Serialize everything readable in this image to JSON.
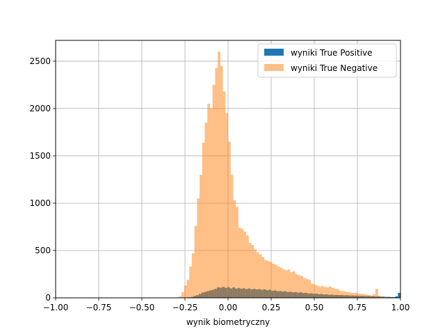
{
  "chart_data": {
    "type": "bar",
    "xlabel": "wynik biometryczny",
    "ylabel": "",
    "xlim": [
      -1.0,
      1.0
    ],
    "ylim": [
      0,
      2720
    ],
    "grid": true,
    "legend_position": "top-right",
    "x_ticks": [
      {
        "value": -1.0,
        "label": "−1.00"
      },
      {
        "value": -0.75,
        "label": "−0.75"
      },
      {
        "value": -0.5,
        "label": "−0.50"
      },
      {
        "value": -0.25,
        "label": "−0.25"
      },
      {
        "value": 0.0,
        "label": "0.00"
      },
      {
        "value": 0.25,
        "label": "0.25"
      },
      {
        "value": 0.5,
        "label": "0.50"
      },
      {
        "value": 0.75,
        "label": "0.75"
      },
      {
        "value": 1.0,
        "label": "1.00"
      }
    ],
    "y_ticks": [
      {
        "value": 0,
        "label": "0"
      },
      {
        "value": 500,
        "label": "500"
      },
      {
        "value": 1000,
        "label": "1000"
      },
      {
        "value": 1500,
        "label": "1500"
      },
      {
        "value": 2000,
        "label": "2000"
      },
      {
        "value": 2500,
        "label": "2500"
      }
    ],
    "series": [
      {
        "name": "wyniki True Positive",
        "color": "#1f77b4",
        "opacity": 1.0,
        "bins": [
          [
            -0.26,
            -0.245,
            2
          ],
          [
            -0.245,
            -0.23,
            4
          ],
          [
            -0.23,
            -0.215,
            6
          ],
          [
            -0.215,
            -0.2,
            10
          ],
          [
            -0.2,
            -0.185,
            20
          ],
          [
            -0.185,
            -0.17,
            28
          ],
          [
            -0.17,
            -0.155,
            40
          ],
          [
            -0.155,
            -0.14,
            55
          ],
          [
            -0.14,
            -0.125,
            62
          ],
          [
            -0.125,
            -0.11,
            70
          ],
          [
            -0.11,
            -0.095,
            78
          ],
          [
            -0.095,
            -0.08,
            85
          ],
          [
            -0.08,
            -0.065,
            95
          ],
          [
            -0.065,
            -0.05,
            110
          ],
          [
            -0.05,
            -0.035,
            108
          ],
          [
            -0.035,
            -0.02,
            115
          ],
          [
            -0.02,
            -0.005,
            105
          ],
          [
            -0.005,
            0.01,
            112
          ],
          [
            0.01,
            0.025,
            100
          ],
          [
            0.025,
            0.04,
            110
          ],
          [
            0.04,
            0.055,
            98
          ],
          [
            0.055,
            0.07,
            104
          ],
          [
            0.07,
            0.085,
            96
          ],
          [
            0.085,
            0.1,
            100
          ],
          [
            0.1,
            0.115,
            92
          ],
          [
            0.115,
            0.13,
            98
          ],
          [
            0.13,
            0.145,
            90
          ],
          [
            0.145,
            0.16,
            95
          ],
          [
            0.16,
            0.175,
            88
          ],
          [
            0.175,
            0.19,
            92
          ],
          [
            0.19,
            0.205,
            85
          ],
          [
            0.205,
            0.22,
            90
          ],
          [
            0.22,
            0.235,
            80
          ],
          [
            0.235,
            0.25,
            86
          ],
          [
            0.25,
            0.265,
            75
          ],
          [
            0.265,
            0.28,
            78
          ],
          [
            0.28,
            0.295,
            70
          ],
          [
            0.295,
            0.31,
            72
          ],
          [
            0.31,
            0.325,
            66
          ],
          [
            0.325,
            0.34,
            70
          ],
          [
            0.34,
            0.355,
            62
          ],
          [
            0.355,
            0.37,
            64
          ],
          [
            0.37,
            0.385,
            58
          ],
          [
            0.385,
            0.4,
            60
          ],
          [
            0.4,
            0.415,
            55
          ],
          [
            0.415,
            0.43,
            58
          ],
          [
            0.43,
            0.445,
            50
          ],
          [
            0.445,
            0.46,
            52
          ],
          [
            0.46,
            0.475,
            46
          ],
          [
            0.475,
            0.49,
            48
          ],
          [
            0.49,
            0.505,
            42
          ],
          [
            0.505,
            0.52,
            44
          ],
          [
            0.52,
            0.535,
            38
          ],
          [
            0.535,
            0.55,
            40
          ],
          [
            0.55,
            0.565,
            35
          ],
          [
            0.565,
            0.58,
            37
          ],
          [
            0.58,
            0.595,
            32
          ],
          [
            0.595,
            0.61,
            34
          ],
          [
            0.61,
            0.625,
            30
          ],
          [
            0.625,
            0.64,
            31
          ],
          [
            0.64,
            0.655,
            28
          ],
          [
            0.655,
            0.67,
            29
          ],
          [
            0.67,
            0.685,
            26
          ],
          [
            0.685,
            0.7,
            27
          ],
          [
            0.7,
            0.715,
            24
          ],
          [
            0.715,
            0.73,
            25
          ],
          [
            0.73,
            0.745,
            22
          ],
          [
            0.745,
            0.76,
            23
          ],
          [
            0.76,
            0.775,
            20
          ],
          [
            0.775,
            0.79,
            21
          ],
          [
            0.79,
            0.805,
            18
          ],
          [
            0.805,
            0.82,
            19
          ],
          [
            0.82,
            0.835,
            16
          ],
          [
            0.835,
            0.85,
            17
          ],
          [
            0.85,
            0.865,
            14
          ],
          [
            0.865,
            0.88,
            15
          ],
          [
            0.88,
            0.895,
            12
          ],
          [
            0.895,
            0.91,
            12
          ],
          [
            0.91,
            0.925,
            10
          ],
          [
            0.925,
            0.94,
            10
          ],
          [
            0.94,
            0.955,
            8
          ],
          [
            0.955,
            0.97,
            8
          ],
          [
            0.97,
            0.985,
            15
          ],
          [
            0.985,
            1.0,
            52
          ]
        ]
      },
      {
        "name": "wyniki True Negative",
        "color": "#ff7f0e",
        "opacity": 0.5,
        "bins": [
          [
            -0.3,
            -0.285,
            5
          ],
          [
            -0.285,
            -0.27,
            15
          ],
          [
            -0.27,
            -0.255,
            60
          ],
          [
            -0.255,
            -0.24,
            130
          ],
          [
            -0.24,
            -0.225,
            190
          ],
          [
            -0.225,
            -0.21,
            330
          ],
          [
            -0.21,
            -0.195,
            470
          ],
          [
            -0.195,
            -0.18,
            760
          ],
          [
            -0.18,
            -0.165,
            1050
          ],
          [
            -0.165,
            -0.15,
            1300
          ],
          [
            -0.15,
            -0.135,
            1640
          ],
          [
            -0.135,
            -0.12,
            1850
          ],
          [
            -0.12,
            -0.105,
            2050
          ],
          [
            -0.105,
            -0.09,
            2000
          ],
          [
            -0.09,
            -0.075,
            2250
          ],
          [
            -0.075,
            -0.06,
            2430
          ],
          [
            -0.06,
            -0.045,
            2600
          ],
          [
            -0.045,
            -0.03,
            2450
          ],
          [
            -0.03,
            -0.015,
            2180
          ],
          [
            -0.015,
            0.0,
            1950
          ],
          [
            0.0,
            0.015,
            1650
          ],
          [
            0.015,
            0.03,
            1300
          ],
          [
            0.03,
            0.045,
            1030
          ],
          [
            0.045,
            0.06,
            960
          ],
          [
            0.06,
            0.075,
            740
          ],
          [
            0.075,
            0.09,
            730
          ],
          [
            0.09,
            0.105,
            700
          ],
          [
            0.105,
            0.12,
            660
          ],
          [
            0.12,
            0.135,
            580
          ],
          [
            0.135,
            0.15,
            560
          ],
          [
            0.15,
            0.165,
            510
          ],
          [
            0.165,
            0.18,
            480
          ],
          [
            0.18,
            0.195,
            460
          ],
          [
            0.195,
            0.21,
            430
          ],
          [
            0.21,
            0.225,
            400
          ],
          [
            0.225,
            0.24,
            390
          ],
          [
            0.24,
            0.255,
            380
          ],
          [
            0.255,
            0.27,
            360
          ],
          [
            0.27,
            0.285,
            350
          ],
          [
            0.285,
            0.3,
            330
          ],
          [
            0.3,
            0.315,
            320
          ],
          [
            0.315,
            0.33,
            300
          ],
          [
            0.33,
            0.345,
            290
          ],
          [
            0.345,
            0.36,
            300
          ],
          [
            0.36,
            0.375,
            270
          ],
          [
            0.375,
            0.39,
            280
          ],
          [
            0.39,
            0.405,
            250
          ],
          [
            0.405,
            0.42,
            240
          ],
          [
            0.42,
            0.435,
            230
          ],
          [
            0.435,
            0.45,
            210
          ],
          [
            0.45,
            0.465,
            200
          ],
          [
            0.465,
            0.48,
            190
          ],
          [
            0.48,
            0.495,
            150
          ],
          [
            0.495,
            0.51,
            140
          ],
          [
            0.51,
            0.525,
            130
          ],
          [
            0.525,
            0.54,
            120
          ],
          [
            0.54,
            0.555,
            125
          ],
          [
            0.555,
            0.57,
            115
          ],
          [
            0.57,
            0.585,
            110
          ],
          [
            0.585,
            0.6,
            120
          ],
          [
            0.6,
            0.615,
            105
          ],
          [
            0.615,
            0.63,
            95
          ],
          [
            0.63,
            0.645,
            90
          ],
          [
            0.645,
            0.66,
            75
          ],
          [
            0.66,
            0.675,
            70
          ],
          [
            0.675,
            0.69,
            65
          ],
          [
            0.69,
            0.705,
            60
          ],
          [
            0.705,
            0.72,
            55
          ],
          [
            0.72,
            0.735,
            50
          ],
          [
            0.735,
            0.75,
            55
          ],
          [
            0.75,
            0.765,
            45
          ],
          [
            0.765,
            0.78,
            40
          ],
          [
            0.78,
            0.795,
            40
          ],
          [
            0.795,
            0.81,
            35
          ],
          [
            0.81,
            0.825,
            30
          ],
          [
            0.825,
            0.84,
            25
          ],
          [
            0.84,
            0.855,
            40
          ],
          [
            0.855,
            0.87,
            95
          ],
          [
            0.87,
            0.885,
            20
          ],
          [
            0.885,
            0.9,
            15
          ],
          [
            0.9,
            0.915,
            10
          ],
          [
            0.915,
            0.93,
            8
          ],
          [
            0.93,
            0.945,
            5
          ],
          [
            0.945,
            0.96,
            3
          ]
        ]
      }
    ]
  }
}
